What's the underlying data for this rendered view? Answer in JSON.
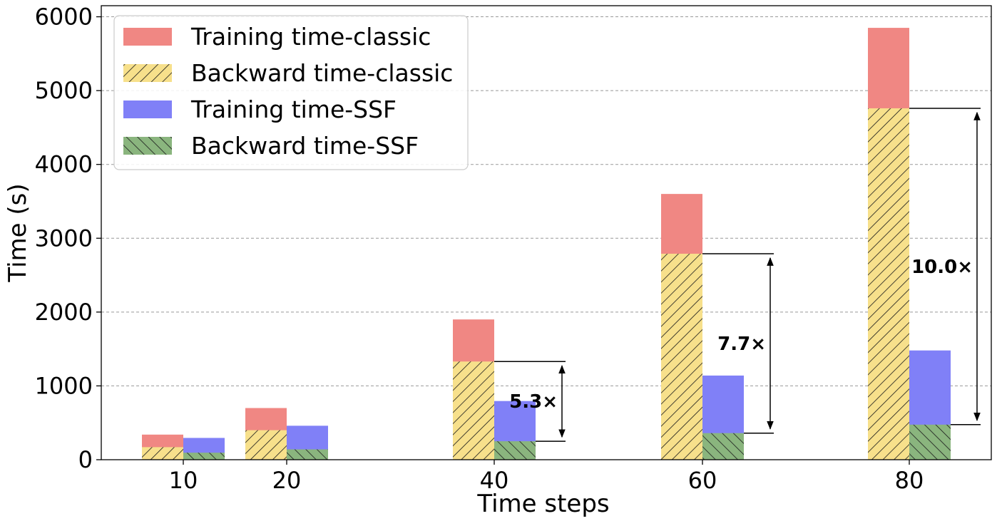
{
  "chart_data": {
    "type": "bar",
    "title": "",
    "xlabel": "Time steps",
    "ylabel": "Time (s)",
    "ylim": [
      0,
      6150
    ],
    "yticks": [
      0,
      1000,
      2000,
      3000,
      4000,
      5000,
      6000
    ],
    "grid": "y-dashed",
    "legend_position": "top-left",
    "categories": [
      "10",
      "20",
      "40",
      "60",
      "80"
    ],
    "series": [
      {
        "name": "Training time-classic",
        "group": "classic",
        "values": [
          340,
          700,
          1900,
          3600,
          5850
        ],
        "color": "#f08783",
        "hatch": "none"
      },
      {
        "name": "Backward time-classic",
        "group": "classic",
        "values": [
          170,
          400,
          1330,
          2790,
          4760
        ],
        "color": "#f7e08b",
        "hatch": "forward-diagonal"
      },
      {
        "name": "Training time-SSF",
        "group": "SSF",
        "values": [
          295,
          460,
          795,
          1140,
          1480
        ],
        "color": "#8080f7",
        "hatch": "none"
      },
      {
        "name": "Backward time-SSF",
        "group": "SSF",
        "values": [
          95,
          140,
          250,
          360,
          475
        ],
        "color": "#8ab57e",
        "hatch": "back-diagonal"
      }
    ],
    "annotations": [
      {
        "text": "5.3×",
        "category": "40",
        "from": 250,
        "to": 1330
      },
      {
        "text": "7.7×",
        "category": "60",
        "from": 360,
        "to": 2790
      },
      {
        "text": "10.0×",
        "category": "80",
        "from": 475,
        "to": 4760
      }
    ]
  }
}
